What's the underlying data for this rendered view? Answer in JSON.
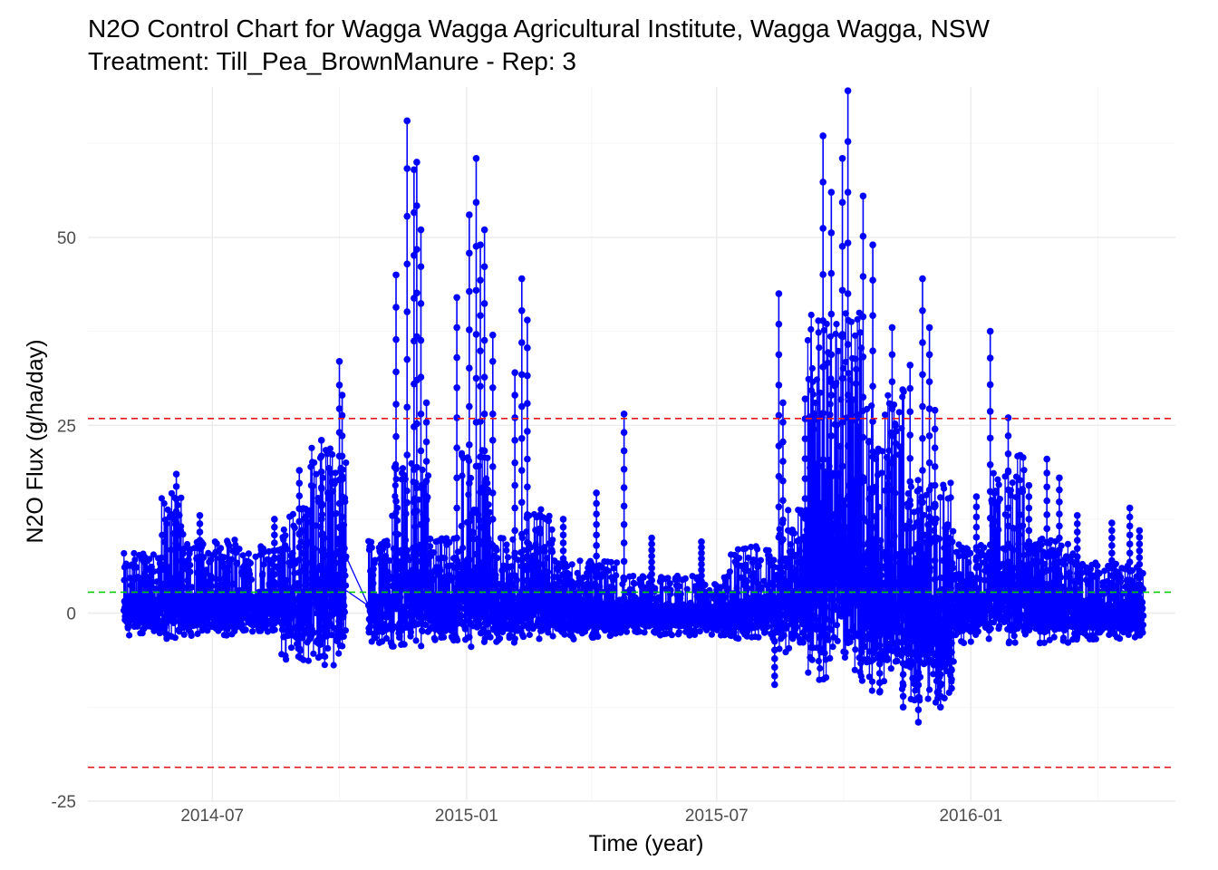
{
  "chart_data": {
    "type": "line",
    "title": "N2O Control Chart for Wagga Wagga Agricultural Institute, Wagga Wagga, NSW",
    "subtitle": "Treatment: Till_Pea_BrownManure - Rep: 3",
    "xlabel": "Time (year)",
    "ylabel": "N2O Flux (g/ha/day)",
    "xlim": [
      "2014-04-02",
      "2016-05-28"
    ],
    "ylim": [
      -25,
      70
    ],
    "x_ticks": [
      "2014-07-01",
      "2015-01-01",
      "2015-07-01",
      "2016-01-01"
    ],
    "x_tick_labels": [
      "2014-07",
      "2015-01",
      "2015-07",
      "2016-01"
    ],
    "y_ticks": [
      -25,
      0,
      25,
      50
    ],
    "y_tick_labels": [
      "-25",
      "0",
      "25",
      "50"
    ],
    "grid": true,
    "series_color": "#0000ff",
    "reference_lines": [
      {
        "kind": "upper-control-limit",
        "value": 25.9,
        "color": "#e41a1c",
        "style": "dashed"
      },
      {
        "kind": "mean",
        "value": 2.8,
        "color": "#00cd00",
        "style": "dashed"
      },
      {
        "kind": "lower-control-limit",
        "value": -20.5,
        "color": "#e41a1c",
        "style": "dashed"
      }
    ],
    "data_gap": [
      "2014-10-06",
      "2014-10-22"
    ],
    "series": [
      {
        "segments": [
          {
            "start": "2014-04-28",
            "end": "2014-05-25",
            "low": -3.0,
            "high": 8.0
          },
          {
            "start": "2014-05-25",
            "end": "2014-06-10",
            "low": -3.5,
            "high": 16.0
          },
          {
            "start": "2014-06-10",
            "end": "2014-07-20",
            "low": -3.0,
            "high": 10.0
          },
          {
            "start": "2014-07-20",
            "end": "2014-08-20",
            "low": -2.5,
            "high": 9.0
          },
          {
            "start": "2014-08-20",
            "end": "2014-09-10",
            "low": -6.5,
            "high": 14.0
          },
          {
            "start": "2014-09-10",
            "end": "2014-10-06",
            "low": -7.0,
            "high": 22.0
          },
          {
            "start": "2014-10-22",
            "end": "2014-11-08",
            "low": -4.0,
            "high": 10.0
          },
          {
            "start": "2014-11-08",
            "end": "2014-12-05",
            "low": -4.5,
            "high": 20.0
          },
          {
            "start": "2014-12-05",
            "end": "2014-12-28",
            "low": -4.0,
            "high": 10.0
          },
          {
            "start": "2014-12-28",
            "end": "2015-01-18",
            "low": -4.5,
            "high": 22.0
          },
          {
            "start": "2015-01-18",
            "end": "2015-02-10",
            "low": -4.0,
            "high": 10.0
          },
          {
            "start": "2015-02-10",
            "end": "2015-03-05",
            "low": -3.5,
            "high": 14.0
          },
          {
            "start": "2015-03-05",
            "end": "2015-04-20",
            "low": -3.5,
            "high": 7.0
          },
          {
            "start": "2015-04-20",
            "end": "2015-07-10",
            "low": -3.0,
            "high": 5.0
          },
          {
            "start": "2015-07-10",
            "end": "2015-08-15",
            "low": -3.5,
            "high": 9.0
          },
          {
            "start": "2015-08-15",
            "end": "2015-09-05",
            "low": -6.0,
            "high": 14.0
          },
          {
            "start": "2015-09-05",
            "end": "2015-10-15",
            "low": -9.0,
            "high": 40.0
          },
          {
            "start": "2015-10-15",
            "end": "2015-11-15",
            "low": -11.0,
            "high": 30.0
          },
          {
            "start": "2015-11-15",
            "end": "2015-12-20",
            "low": -12.0,
            "high": 18.0
          },
          {
            "start": "2015-12-20",
            "end": "2016-01-15",
            "low": -4.0,
            "high": 10.0
          },
          {
            "start": "2016-01-15",
            "end": "2016-02-10",
            "low": -4.0,
            "high": 22.0
          },
          {
            "start": "2016-02-10",
            "end": "2016-03-15",
            "low": -4.0,
            "high": 10.0
          },
          {
            "start": "2016-03-15",
            "end": "2016-05-05",
            "low": -3.5,
            "high": 7.0
          }
        ],
        "spikes": [
          [
            "2014-06-05",
            18.5
          ],
          [
            "2014-06-22",
            13.0
          ],
          [
            "2014-08-15",
            12.5
          ],
          [
            "2014-09-02",
            19.0
          ],
          [
            "2014-09-18",
            23.0
          ],
          [
            "2014-10-01",
            33.5
          ],
          [
            "2014-10-03",
            29.0
          ],
          [
            "2014-11-11",
            45.0
          ],
          [
            "2014-11-19",
            65.5
          ],
          [
            "2014-11-24",
            59.0
          ],
          [
            "2014-11-26",
            60.0
          ],
          [
            "2014-11-29",
            51.0
          ],
          [
            "2014-12-03",
            28.0
          ],
          [
            "2014-12-25",
            42.0
          ],
          [
            "2015-01-03",
            53.0
          ],
          [
            "2015-01-08",
            60.5
          ],
          [
            "2015-01-11",
            49.0
          ],
          [
            "2015-01-14",
            51.0
          ],
          [
            "2015-01-20",
            37.0
          ],
          [
            "2015-02-05",
            32.0
          ],
          [
            "2015-02-10",
            44.5
          ],
          [
            "2015-02-14",
            39.0
          ],
          [
            "2015-03-12",
            12.5
          ],
          [
            "2015-04-05",
            16.0
          ],
          [
            "2015-04-25",
            26.5
          ],
          [
            "2015-05-15",
            10.0
          ],
          [
            "2015-06-20",
            9.5
          ],
          [
            "2015-08-15",
            42.5
          ],
          [
            "2015-08-18",
            28.0
          ],
          [
            "2015-09-03",
            28.5
          ],
          [
            "2015-09-16",
            63.5
          ],
          [
            "2015-09-22",
            56.0
          ],
          [
            "2015-09-30",
            60.5
          ],
          [
            "2015-10-04",
            69.5
          ],
          [
            "2015-10-15",
            55.5
          ],
          [
            "2015-10-22",
            49.0
          ],
          [
            "2015-11-05",
            38.0
          ],
          [
            "2015-11-18",
            33.0
          ],
          [
            "2015-11-27",
            44.5
          ],
          [
            "2015-12-02",
            38.0
          ],
          [
            "2015-12-06",
            27.0
          ],
          [
            "2016-01-05",
            15.5
          ],
          [
            "2016-01-15",
            37.5
          ],
          [
            "2016-01-28",
            26.0
          ],
          [
            "2016-02-12",
            17.0
          ],
          [
            "2016-02-25",
            20.5
          ],
          [
            "2016-03-05",
            18.0
          ],
          [
            "2016-03-18",
            13.0
          ],
          [
            "2016-04-12",
            12.0
          ],
          [
            "2016-04-25",
            14.0
          ],
          [
            "2016-05-02",
            11.0
          ]
        ],
        "dips": [
          [
            "2015-08-12",
            -9.5
          ],
          [
            "2015-11-13",
            -12.5
          ],
          [
            "2015-11-24",
            -14.5
          ],
          [
            "2015-12-10",
            -12.5
          ],
          [
            "2015-12-18",
            -10.0
          ],
          [
            "2015-10-27",
            -10.5
          ]
        ]
      }
    ]
  }
}
